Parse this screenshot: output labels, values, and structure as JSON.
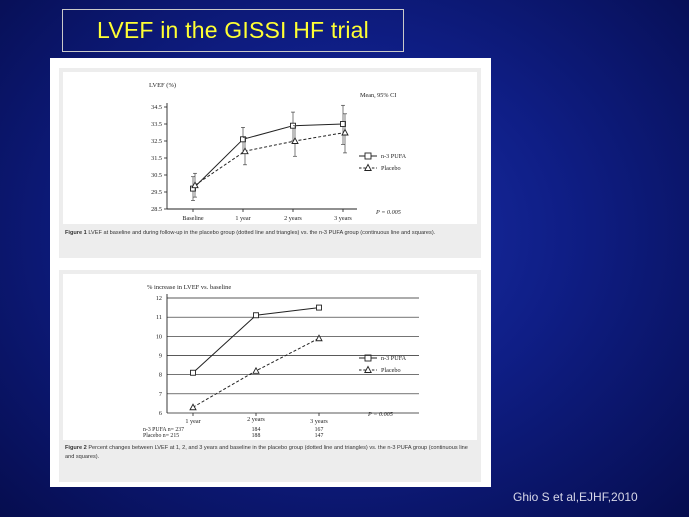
{
  "slide": {
    "title": "LVEF in the GISSI HF trial",
    "credit": "Ghio S et al,EJHF,2010",
    "colors": {
      "title": "#ffff33",
      "background": "#0f1e86"
    }
  },
  "chart_data": [
    {
      "type": "line",
      "ylabel": "LVEF (%)",
      "categories": [
        "Baseline",
        "1 year",
        "2 years",
        "3 years"
      ],
      "ylim": [
        28.5,
        34.5
      ],
      "yticks": [
        "28.5",
        "29.5",
        "30.5",
        "31.5",
        "32.5",
        "33.5",
        "34.5"
      ],
      "note": "Mean, 95% CI",
      "pvalue": "P = 0.005",
      "series": [
        {
          "name": "n-3 PUFA",
          "values": [
            29.7,
            32.6,
            33.4,
            33.5
          ],
          "err_low": [
            29.0,
            31.8,
            32.5,
            32.3
          ],
          "err_high": [
            30.4,
            33.3,
            34.2,
            34.6
          ]
        },
        {
          "name": "Placebo",
          "values": [
            29.9,
            31.9,
            32.5,
            33.0
          ],
          "err_low": [
            29.2,
            31.1,
            31.6,
            31.8
          ],
          "err_high": [
            30.6,
            32.7,
            33.4,
            34.1
          ]
        }
      ],
      "caption_label": "Figure 1",
      "caption_text": "LVEF at baseline and during follow-up in the placebo group (dotted line and triangles) vs. the n-3 PUFA group (continuous line and squares)."
    },
    {
      "type": "line",
      "ylabel": "% increase in LVEF vs. baseline",
      "categories": [
        "1 year",
        "2 years",
        "3 years"
      ],
      "ylim": [
        6,
        12
      ],
      "yticks": [
        "6",
        "7",
        "8",
        "9",
        "10",
        "11",
        "12"
      ],
      "pvalue": "P = 0.005",
      "series": [
        {
          "name": "n-3 PUFA",
          "values": [
            8.1,
            11.1,
            11.5
          ]
        },
        {
          "name": "Placebo",
          "values": [
            6.3,
            8.2,
            9.9
          ]
        }
      ],
      "n_at_risk": [
        {
          "label": "n-3 PUFA n= 237",
          "values": [
            "184",
            "167"
          ]
        },
        {
          "label": "Placebo n= 215",
          "values": [
            "188",
            "147"
          ]
        }
      ],
      "caption_label": "Figure 2",
      "caption_text": "Percent changes between LVEF at 1, 2, and 3 years and baseline in the placebo group (dotted line and triangles) vs. the n-3 PUFA group (continuous line and squares)."
    }
  ]
}
